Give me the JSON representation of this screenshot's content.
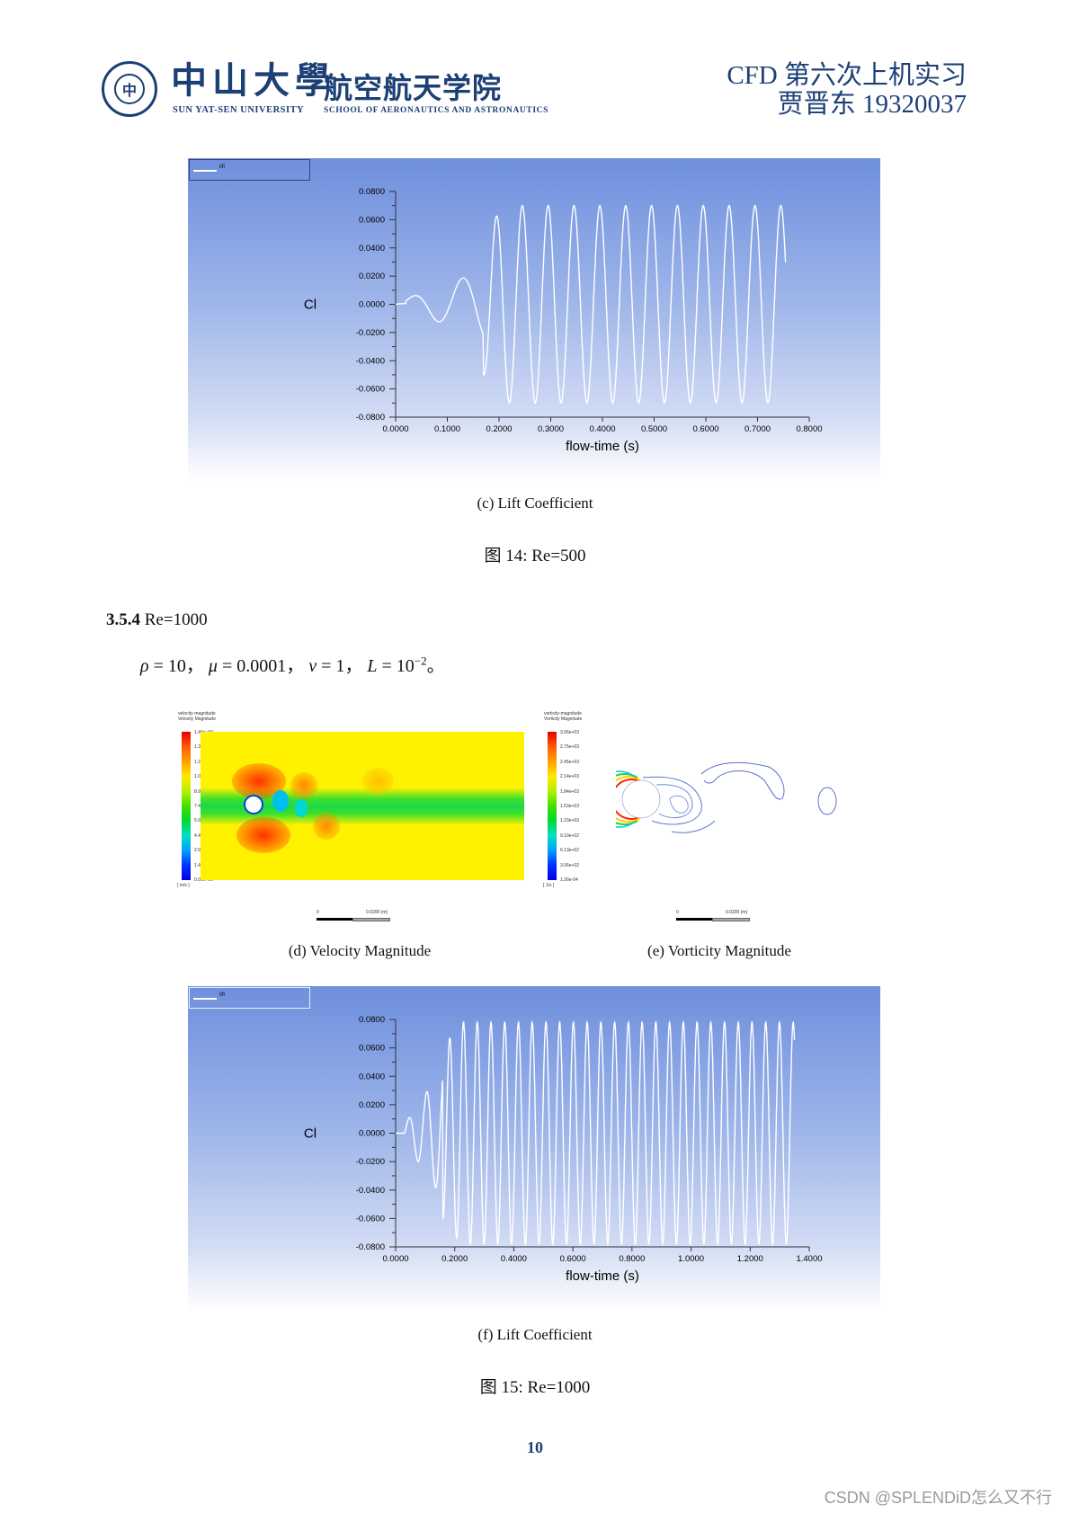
{
  "header": {
    "university_cn": "中山大學",
    "university_en": "SUN YAT-SEN UNIVERSITY",
    "school_cn": "航空航天学院",
    "school_en": "SCHOOL OF AERONAUTICS AND ASTRONAUTICS",
    "title_line1": "CFD 第六次上机实习",
    "title_line2": "贾晋东 19320037",
    "seal_glyph": "中"
  },
  "figure14": {
    "subcaption_c": "(c) Lift Coefficient",
    "caption": "图 14: Re=500"
  },
  "section": {
    "number": "3.5.4",
    "title": " Re=1000",
    "formula": {
      "rho": "ρ",
      "rho_val": " = 10，",
      "mu": "μ",
      "mu_val": " = 0.0001，",
      "v": "v",
      "v_val": " = 1，",
      "L": "L",
      "L_val": " = 10",
      "L_exp": "−2",
      "end": "。"
    }
  },
  "figure15": {
    "velocity": {
      "title_line1": "velocity-magnitude",
      "title_line2": "Velocity Magnitude",
      "ticks": [
        "1.49e+00",
        "1.34e+00",
        "1.20e+00",
        "1.05e+00",
        "8.96e-01",
        "7.47e-01",
        "5.98e-01",
        "4.48e-01",
        "2.99e-01",
        "1.49e-01",
        "0.00e+00"
      ],
      "unit": "[ m/s ]",
      "scale_left": "0",
      "scale_right": "0.0200 (m)"
    },
    "vorticity": {
      "title_line1": "vorticity-magnitude",
      "title_line2": "Vorticity Magnitude",
      "ticks": [
        "3.06e+03",
        "2.75e+03",
        "2.45e+03",
        "2.14e+03",
        "1.84e+03",
        "1.53e+03",
        "1.23e+03",
        "9.19e+02",
        "6.13e+02",
        "3.06e+02",
        "1.30e-04"
      ],
      "unit": "[ 1/s ]",
      "scale_left": "0",
      "scale_right": "0.0200 (m)"
    },
    "subcaption_d": "(d) Velocity Magnitude",
    "subcaption_e": "(e) Vorticity Magnitude",
    "subcaption_f": "(f) Lift Coefficient",
    "caption": "图 15: Re=1000"
  },
  "footer": {
    "page_number": "10",
    "watermark": "CSDN @SPLENDiD怎么又不行"
  },
  "chart_data": [
    {
      "type": "line",
      "title": "",
      "legend": [
        "lift"
      ],
      "legend_position": "top-left",
      "xlabel": "flow-time (s)",
      "ylabel": "Cl",
      "xlim": [
        0,
        0.8
      ],
      "ylim": [
        -0.08,
        0.08
      ],
      "x_ticks": [
        "0.0000",
        "0.1000",
        "0.2000",
        "0.3000",
        "0.4000",
        "0.5000",
        "0.6000",
        "0.7000",
        "0.8000"
      ],
      "y_ticks": [
        "0.0800",
        "0.0600",
        "0.0400",
        "0.0200",
        "0.0000",
        "-0.0200",
        "-0.0400",
        "-0.0600",
        "-0.0800"
      ],
      "grid": false,
      "series": [
        {
          "name": "lift",
          "x": [
            0.0,
            0.02,
            0.05,
            0.08,
            0.1,
            0.12,
            0.145,
            0.17,
            0.185,
            0.2,
            0.215,
            0.235,
            0.25,
            0.265,
            0.285,
            0.3,
            0.315,
            0.335,
            0.35,
            0.365,
            0.385,
            0.4,
            0.415,
            0.435,
            0.45,
            0.465,
            0.485,
            0.5,
            0.515,
            0.535,
            0.55,
            0.565,
            0.585,
            0.6,
            0.615,
            0.635,
            0.65,
            0.665,
            0.685,
            0.7,
            0.715,
            0.735,
            0.75,
            0.755
          ],
          "values": [
            0.0,
            0.001,
            0.003,
            -0.006,
            -0.001,
            0.015,
            0.023,
            -0.047,
            -0.052,
            0.06,
            -0.058,
            0.061,
            0.067,
            -0.069,
            0.067,
            0.069,
            -0.069,
            0.069,
            0.07,
            -0.07,
            0.07,
            0.07,
            -0.07,
            0.07,
            0.07,
            -0.07,
            0.07,
            0.07,
            -0.07,
            0.07,
            0.07,
            -0.07,
            0.07,
            0.07,
            -0.07,
            0.07,
            0.07,
            -0.07,
            0.07,
            0.07,
            -0.07,
            0.07,
            0.07,
            0.06
          ]
        }
      ]
    },
    {
      "type": "line",
      "title": "",
      "legend": [
        "lift"
      ],
      "legend_position": "top-left",
      "xlabel": "flow-time (s)",
      "ylabel": "Cl",
      "xlim": [
        0,
        1.4
      ],
      "ylim": [
        -0.08,
        0.08
      ],
      "x_ticks": [
        "0.0000",
        "0.2000",
        "0.4000",
        "0.6000",
        "0.8000",
        "1.0000",
        "1.2000",
        "1.4000"
      ],
      "y_ticks": [
        "0.0800",
        "0.0600",
        "0.0400",
        "0.0200",
        "0.0000",
        "-0.0200",
        "-0.0400",
        "-0.0600",
        "-0.0800"
      ],
      "grid": false,
      "series": [
        {
          "name": "lift",
          "note": "initial transient then ~28 periods of steady oscillation, amplitude ~0.078, period ~0.046 s",
          "x": [
            0.0,
            0.02,
            0.06,
            0.09,
            0.115,
            0.145,
            0.17,
            0.2,
            0.25,
            0.3,
            0.4,
            0.6,
            0.8,
            1.0,
            1.2,
            1.35
          ],
          "values": [
            0.0,
            0.0,
            0.008,
            -0.002,
            -0.018,
            0.047,
            -0.069,
            0.077,
            0.078,
            0.078,
            0.078,
            0.078,
            0.078,
            0.078,
            0.078,
            0.078
          ],
          "amplitude": 0.078,
          "period": 0.0465
        }
      ]
    }
  ]
}
